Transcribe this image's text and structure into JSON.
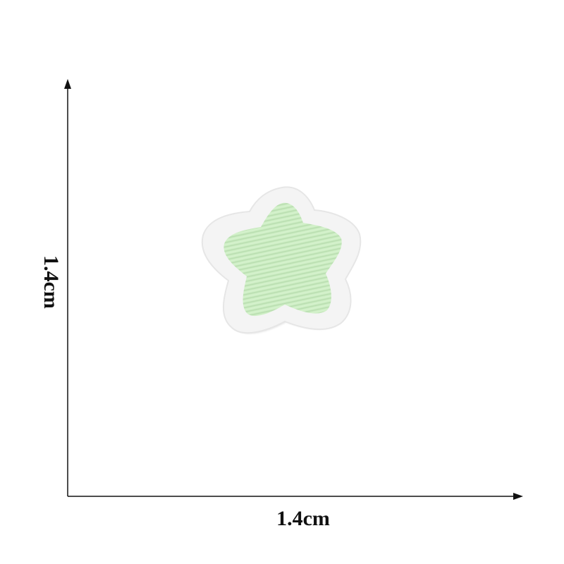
{
  "dimensions": {
    "width_label": "1.4cm",
    "height_label": "1.4cm"
  },
  "patch": {
    "shape": "star",
    "fill_color": "#cdeec4",
    "border_color": "#f4f4f4"
  },
  "colors": {
    "background": "#ffffff",
    "axis": "#111111"
  }
}
